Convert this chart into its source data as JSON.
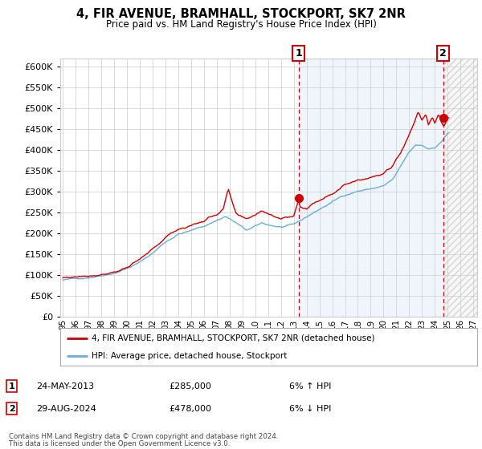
{
  "title": "4, FIR AVENUE, BRAMHALL, STOCKPORT, SK7 2NR",
  "subtitle": "Price paid vs. HM Land Registry's House Price Index (HPI)",
  "legend_line1": "4, FIR AVENUE, BRAMHALL, STOCKPORT, SK7 2NR (detached house)",
  "legend_line2": "HPI: Average price, detached house, Stockport",
  "annotation1_date": "24-MAY-2013",
  "annotation1_price": "£285,000",
  "annotation1_hpi": "6% ↑ HPI",
  "annotation2_date": "29-AUG-2024",
  "annotation2_price": "£478,000",
  "annotation2_hpi": "6% ↓ HPI",
  "footnote1": "Contains HM Land Registry data © Crown copyright and database right 2024.",
  "footnote2": "This data is licensed under the Open Government Licence v3.0.",
  "hpi_color": "#6baed6",
  "hpi_fill_color": "#ddeeff",
  "price_color": "#CC0000",
  "annotation_box_color": "#CC0000",
  "background_color": "#FFFFFF",
  "grid_color": "#CCCCCC",
  "ylim": [
    0,
    620000
  ],
  "yticks": [
    0,
    50000,
    100000,
    150000,
    200000,
    250000,
    300000,
    350000,
    400000,
    450000,
    500000,
    550000,
    600000
  ],
  "x_start_year": 1995,
  "x_end_year": 2027,
  "marker1_x": 2013.38,
  "marker1_y": 285000,
  "marker2_x": 2024.66,
  "marker2_y": 478000,
  "hatch_start": 2024.75,
  "hatch_end": 2027.5,
  "xtick_years": [
    1995,
    1996,
    1997,
    1998,
    1999,
    2000,
    2001,
    2002,
    2003,
    2004,
    2005,
    2006,
    2007,
    2008,
    2009,
    2010,
    2011,
    2012,
    2013,
    2014,
    2015,
    2016,
    2017,
    2018,
    2019,
    2020,
    2021,
    2022,
    2023,
    2024,
    2025,
    2026,
    2027
  ],
  "xtick_labels": [
    "95",
    "96",
    "97",
    "98",
    "99",
    "00",
    "01",
    "02",
    "03",
    "04",
    "05",
    "06",
    "07",
    "08",
    "09",
    "10",
    "11",
    "12",
    "13",
    "14",
    "15",
    "16",
    "17",
    "18",
    "19",
    "20",
    "21",
    "22",
    "23",
    "24",
    "25",
    "26",
    "27"
  ]
}
